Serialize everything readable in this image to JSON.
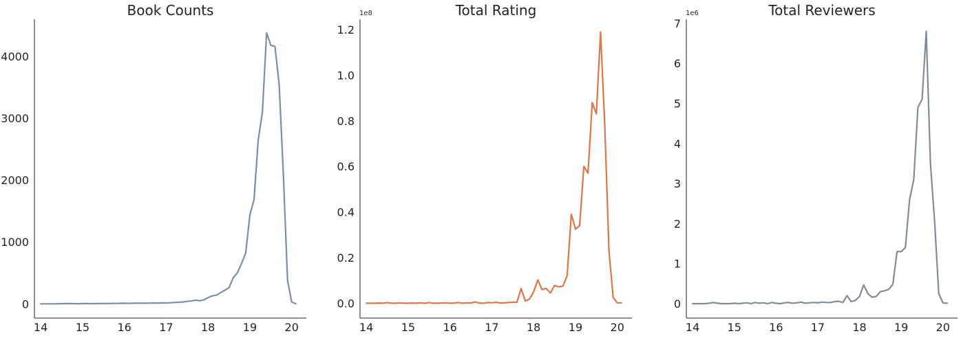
{
  "chart_data": [
    {
      "type": "line",
      "title": "Book Counts",
      "xlabel": "",
      "ylabel": "",
      "xlim": [
        13.85,
        20.35
      ],
      "ylim": [
        -230,
        4600
      ],
      "x_ticks": [
        "14",
        "15",
        "16",
        "17",
        "18",
        "19",
        "20"
      ],
      "y_ticks": [
        "0",
        "1000",
        "2000",
        "3000",
        "4000"
      ],
      "y_tick_values": [
        0,
        1000,
        2000,
        3000,
        4000
      ],
      "multiplier": "",
      "color": "#7a8ea8",
      "grid": false,
      "series": [
        {
          "x": [
            14.0,
            14.1,
            14.2,
            14.3,
            14.4,
            14.5,
            14.6,
            14.7,
            14.8,
            14.9,
            15.0,
            15.1,
            15.2,
            15.3,
            15.4,
            15.5,
            15.6,
            15.7,
            15.8,
            15.9,
            16.0,
            16.1,
            16.2,
            16.3,
            16.4,
            16.5,
            16.6,
            16.7,
            16.8,
            16.9,
            17.0,
            17.1,
            17.2,
            17.3,
            17.4,
            17.5,
            17.6,
            17.7,
            17.8,
            17.9,
            18.0,
            18.1,
            18.2,
            18.3,
            18.4,
            18.5,
            18.6,
            18.7,
            18.8,
            18.9,
            19.0,
            19.1,
            19.2,
            19.3,
            19.4,
            19.5,
            19.6,
            19.7,
            19.8,
            19.9,
            20.0,
            20.1
          ],
          "values": [
            0,
            0,
            0,
            0,
            2,
            3,
            5,
            4,
            3,
            2,
            5,
            4,
            3,
            5,
            4,
            6,
            5,
            8,
            7,
            9,
            10,
            8,
            10,
            12,
            11,
            10,
            12,
            14,
            12,
            15,
            14,
            18,
            22,
            25,
            30,
            40,
            45,
            60,
            50,
            65,
            100,
            130,
            140,
            180,
            220,
            260,
            420,
            500,
            650,
            820,
            1440,
            1680,
            2650,
            3100,
            4380,
            4180,
            4160,
            3550,
            2100,
            380,
            30,
            0
          ]
        }
      ]
    },
    {
      "type": "line",
      "title": "Total Rating",
      "xlabel": "",
      "ylabel": "",
      "xlim": [
        13.85,
        20.35
      ],
      "ylim": [
        -0.065,
        1.245
      ],
      "x_ticks": [
        "14",
        "15",
        "16",
        "17",
        "18",
        "19",
        "20"
      ],
      "y_ticks": [
        "0.0",
        "0.2",
        "0.4",
        "0.6",
        "0.8",
        "1.0",
        "1.2"
      ],
      "y_tick_values": [
        0,
        0.2,
        0.4,
        0.6,
        0.8,
        1.0,
        1.2
      ],
      "multiplier": "1e8",
      "color": "#d9774a",
      "grid": false,
      "series": [
        {
          "x": [
            14.0,
            14.1,
            14.2,
            14.3,
            14.4,
            14.5,
            14.6,
            14.7,
            14.8,
            14.9,
            15.0,
            15.1,
            15.2,
            15.3,
            15.4,
            15.5,
            15.6,
            15.7,
            15.8,
            15.9,
            16.0,
            16.1,
            16.2,
            16.3,
            16.4,
            16.5,
            16.6,
            16.7,
            16.8,
            16.9,
            17.0,
            17.1,
            17.2,
            17.3,
            17.4,
            17.5,
            17.6,
            17.7,
            17.8,
            17.9,
            18.0,
            18.1,
            18.2,
            18.3,
            18.4,
            18.5,
            18.6,
            18.7,
            18.8,
            18.9,
            19.0,
            19.1,
            19.2,
            19.3,
            19.4,
            19.5,
            19.6,
            19.7,
            19.8,
            19.9,
            20.0,
            20.1
          ],
          "values": [
            0.0,
            0.0,
            0.0,
            0.001,
            0.0,
            0.003,
            0.0,
            0.0,
            0.002,
            0.0,
            0.0,
            0.001,
            0.0,
            0.002,
            0.0,
            0.003,
            0.0,
            0.0,
            0.001,
            0.002,
            0.0,
            0.001,
            0.003,
            0.0,
            0.002,
            0.001,
            0.006,
            0.001,
            0.0,
            0.003,
            0.002,
            0.004,
            0.001,
            0.002,
            0.003,
            0.005,
            0.004,
            0.065,
            0.01,
            0.018,
            0.05,
            0.102,
            0.06,
            0.065,
            0.045,
            0.078,
            0.072,
            0.075,
            0.12,
            0.39,
            0.325,
            0.34,
            0.6,
            0.57,
            0.88,
            0.83,
            1.19,
            0.78,
            0.23,
            0.025,
            0.002,
            0.002
          ]
        }
      ]
    },
    {
      "type": "line",
      "title": "Total Reviewers",
      "xlabel": "",
      "ylabel": "",
      "xlim": [
        13.85,
        20.35
      ],
      "ylim": [
        -0.36,
        7.1
      ],
      "x_ticks": [
        "14",
        "15",
        "16",
        "17",
        "18",
        "19",
        "20"
      ],
      "y_ticks": [
        "0",
        "1",
        "2",
        "3",
        "4",
        "5",
        "6",
        "7"
      ],
      "y_tick_values": [
        0,
        1,
        2,
        3,
        4,
        5,
        6,
        7
      ],
      "multiplier": "1e6",
      "color": "#7f8c98",
      "grid": false,
      "series": [
        {
          "x": [
            14.0,
            14.1,
            14.2,
            14.3,
            14.4,
            14.5,
            14.6,
            14.7,
            14.8,
            14.9,
            15.0,
            15.1,
            15.2,
            15.3,
            15.4,
            15.5,
            15.6,
            15.7,
            15.8,
            15.9,
            16.0,
            16.1,
            16.2,
            16.3,
            16.4,
            16.5,
            16.6,
            16.7,
            16.8,
            16.9,
            17.0,
            17.1,
            17.2,
            17.3,
            17.4,
            17.5,
            17.6,
            17.7,
            17.8,
            17.9,
            18.0,
            18.1,
            18.2,
            18.3,
            18.4,
            18.5,
            18.6,
            18.7,
            18.8,
            18.9,
            19.0,
            19.1,
            19.2,
            19.3,
            19.4,
            19.5,
            19.6,
            19.7,
            19.8,
            19.9,
            20.0,
            20.1
          ],
          "values": [
            0.0,
            0.0,
            0.0,
            0.0,
            0.01,
            0.03,
            0.01,
            0.0,
            0.0,
            0.0,
            0.01,
            0.0,
            0.01,
            0.02,
            0.0,
            0.03,
            0.01,
            0.02,
            0.0,
            0.03,
            0.01,
            0.0,
            0.02,
            0.03,
            0.01,
            0.02,
            0.04,
            0.01,
            0.02,
            0.03,
            0.02,
            0.04,
            0.03,
            0.03,
            0.05,
            0.06,
            0.03,
            0.2,
            0.05,
            0.08,
            0.18,
            0.47,
            0.25,
            0.16,
            0.18,
            0.3,
            0.32,
            0.36,
            0.48,
            1.3,
            1.3,
            1.4,
            2.6,
            3.1,
            4.9,
            5.1,
            6.8,
            3.5,
            2.05,
            0.25,
            0.02,
            0.01
          ]
        }
      ]
    }
  ]
}
